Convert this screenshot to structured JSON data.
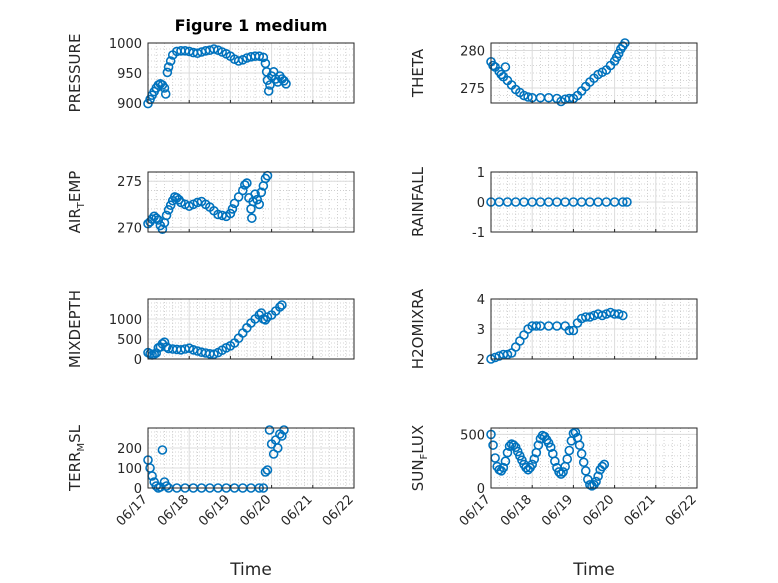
{
  "figure": {
    "title": "Figure 1 medium",
    "xlabel": "Time",
    "x_tick_labels": [
      "06/17",
      "06/18",
      "06/19",
      "06/20",
      "06/21",
      "06/22"
    ],
    "marker_color": "#0072BD"
  },
  "chart_data": [
    {
      "type": "scatter",
      "ylabel": {
        "main": "PRESSURE",
        "sub": ""
      },
      "ylim": [
        900,
        1000
      ],
      "yticks": [
        900,
        950,
        1000
      ],
      "xlim": [
        0,
        5
      ],
      "points": [
        [
          0.0,
          899
        ],
        [
          0.05,
          906
        ],
        [
          0.1,
          913
        ],
        [
          0.15,
          919
        ],
        [
          0.2,
          925
        ],
        [
          0.25,
          930
        ],
        [
          0.3,
          932
        ],
        [
          0.35,
          930
        ],
        [
          0.4,
          925
        ],
        [
          0.43,
          915
        ],
        [
          0.47,
          951
        ],
        [
          0.5,
          960
        ],
        [
          0.55,
          970
        ],
        [
          0.6,
          980
        ],
        [
          0.7,
          986
        ],
        [
          0.8,
          987
        ],
        [
          0.9,
          987
        ],
        [
          1.0,
          986
        ],
        [
          1.1,
          984
        ],
        [
          1.2,
          983
        ],
        [
          1.3,
          985
        ],
        [
          1.4,
          987
        ],
        [
          1.5,
          988
        ],
        [
          1.6,
          990
        ],
        [
          1.7,
          988
        ],
        [
          1.8,
          985
        ],
        [
          1.9,
          982
        ],
        [
          2.0,
          978
        ],
        [
          2.1,
          973
        ],
        [
          2.2,
          970
        ],
        [
          2.3,
          972
        ],
        [
          2.4,
          975
        ],
        [
          2.5,
          977
        ],
        [
          2.6,
          978
        ],
        [
          2.7,
          978
        ],
        [
          2.8,
          976
        ],
        [
          2.85,
          966
        ],
        [
          2.88,
          952
        ],
        [
          2.9,
          938
        ],
        [
          2.93,
          920
        ],
        [
          2.96,
          930
        ],
        [
          3.0,
          945
        ],
        [
          3.05,
          952
        ],
        [
          3.1,
          940
        ],
        [
          3.15,
          935
        ],
        [
          3.2,
          945
        ],
        [
          3.25,
          940
        ],
        [
          3.3,
          937
        ],
        [
          3.35,
          932
        ]
      ]
    },
    {
      "type": "scatter",
      "ylabel": {
        "main": "THETA",
        "sub": ""
      },
      "ylim": [
        273,
        281
      ],
      "yticks": [
        275,
        280
      ],
      "xlim": [
        0,
        5
      ],
      "points": [
        [
          0.0,
          278.5
        ],
        [
          0.05,
          278.0
        ],
        [
          0.1,
          277.8
        ],
        [
          0.2,
          277.2
        ],
        [
          0.25,
          276.8
        ],
        [
          0.3,
          276.5
        ],
        [
          0.35,
          277.8
        ],
        [
          0.4,
          276.0
        ],
        [
          0.5,
          275.4
        ],
        [
          0.6,
          274.8
        ],
        [
          0.7,
          274.4
        ],
        [
          0.8,
          274.0
        ],
        [
          0.9,
          273.8
        ],
        [
          1.0,
          273.7
        ],
        [
          1.2,
          273.7
        ],
        [
          1.4,
          273.7
        ],
        [
          1.6,
          273.6
        ],
        [
          1.7,
          273.2
        ],
        [
          1.8,
          273.5
        ],
        [
          1.9,
          273.6
        ],
        [
          2.0,
          273.6
        ],
        [
          2.1,
          274.0
        ],
        [
          2.2,
          274.6
        ],
        [
          2.3,
          275.2
        ],
        [
          2.4,
          275.8
        ],
        [
          2.5,
          276.3
        ],
        [
          2.6,
          276.8
        ],
        [
          2.7,
          277.1
        ],
        [
          2.8,
          277.4
        ],
        [
          2.9,
          278.0
        ],
        [
          3.0,
          278.6
        ],
        [
          3.05,
          279.1
        ],
        [
          3.1,
          279.6
        ],
        [
          3.15,
          280.2
        ],
        [
          3.2,
          280.6
        ],
        [
          3.25,
          281.0
        ]
      ]
    },
    {
      "type": "scatter",
      "ylabel": {
        "main": "AIR",
        "sub": "T",
        "post": "EMP"
      },
      "ylim": [
        269.5,
        276
      ],
      "yticks": [
        270,
        275
      ],
      "xlim": [
        0,
        5
      ],
      "points": [
        [
          0.0,
          270.4
        ],
        [
          0.05,
          270.6
        ],
        [
          0.1,
          270.9
        ],
        [
          0.15,
          271.2
        ],
        [
          0.2,
          271.0
        ],
        [
          0.25,
          270.8
        ],
        [
          0.3,
          270.2
        ],
        [
          0.35,
          269.8
        ],
        [
          0.4,
          270.5
        ],
        [
          0.45,
          271.3
        ],
        [
          0.5,
          271.9
        ],
        [
          0.55,
          272.4
        ],
        [
          0.6,
          272.9
        ],
        [
          0.65,
          273.3
        ],
        [
          0.7,
          273.2
        ],
        [
          0.75,
          273.0
        ],
        [
          0.8,
          272.7
        ],
        [
          0.9,
          272.5
        ],
        [
          1.0,
          272.3
        ],
        [
          1.1,
          272.5
        ],
        [
          1.2,
          272.7
        ],
        [
          1.3,
          272.8
        ],
        [
          1.4,
          272.5
        ],
        [
          1.5,
          272.2
        ],
        [
          1.6,
          271.8
        ],
        [
          1.7,
          271.4
        ],
        [
          1.8,
          271.3
        ],
        [
          1.9,
          271.2
        ],
        [
          2.0,
          271.5
        ],
        [
          2.05,
          272.0
        ],
        [
          2.1,
          272.6
        ],
        [
          2.2,
          273.3
        ],
        [
          2.3,
          274.0
        ],
        [
          2.35,
          274.6
        ],
        [
          2.4,
          274.8
        ],
        [
          2.45,
          273.2
        ],
        [
          2.5,
          272.0
        ],
        [
          2.52,
          271.0
        ],
        [
          2.55,
          272.8
        ],
        [
          2.6,
          273.6
        ],
        [
          2.65,
          273.0
        ],
        [
          2.7,
          272.5
        ],
        [
          2.75,
          273.8
        ],
        [
          2.8,
          274.5
        ],
        [
          2.85,
          275.3
        ],
        [
          2.9,
          275.6
        ]
      ]
    },
    {
      "type": "scatter",
      "ylabel": {
        "main": "RAINFALL",
        "sub": ""
      },
      "ylim": [
        -1,
        1
      ],
      "yticks": [
        -1,
        0,
        1
      ],
      "xlim": [
        0,
        5
      ],
      "points": [
        [
          0.0,
          0
        ],
        [
          0.2,
          0
        ],
        [
          0.4,
          0
        ],
        [
          0.6,
          0
        ],
        [
          0.8,
          0
        ],
        [
          1.0,
          0
        ],
        [
          1.2,
          0
        ],
        [
          1.4,
          0
        ],
        [
          1.6,
          0
        ],
        [
          1.8,
          0
        ],
        [
          2.0,
          0
        ],
        [
          2.2,
          0
        ],
        [
          2.4,
          0
        ],
        [
          2.6,
          0
        ],
        [
          2.8,
          0
        ],
        [
          3.0,
          0
        ],
        [
          3.2,
          0
        ],
        [
          3.3,
          0
        ]
      ]
    },
    {
      "type": "scatter",
      "ylabel": {
        "main": "MIXDEPTH",
        "sub": ""
      },
      "ylim": [
        0,
        1500
      ],
      "yticks": [
        0,
        500,
        1000
      ],
      "xlim": [
        0,
        5
      ],
      "points": [
        [
          0.0,
          160
        ],
        [
          0.05,
          130
        ],
        [
          0.1,
          100
        ],
        [
          0.15,
          120
        ],
        [
          0.2,
          150
        ],
        [
          0.25,
          280
        ],
        [
          0.3,
          300
        ],
        [
          0.35,
          380
        ],
        [
          0.4,
          420
        ],
        [
          0.45,
          300
        ],
        [
          0.5,
          260
        ],
        [
          0.6,
          250
        ],
        [
          0.7,
          240
        ],
        [
          0.8,
          230
        ],
        [
          0.9,
          250
        ],
        [
          1.0,
          270
        ],
        [
          1.1,
          230
        ],
        [
          1.2,
          200
        ],
        [
          1.3,
          170
        ],
        [
          1.4,
          150
        ],
        [
          1.5,
          130
        ],
        [
          1.6,
          120
        ],
        [
          1.7,
          160
        ],
        [
          1.8,
          220
        ],
        [
          1.9,
          280
        ],
        [
          2.0,
          330
        ],
        [
          2.1,
          400
        ],
        [
          2.2,
          520
        ],
        [
          2.3,
          650
        ],
        [
          2.4,
          780
        ],
        [
          2.5,
          900
        ],
        [
          2.6,
          1000
        ],
        [
          2.7,
          1100
        ],
        [
          2.75,
          1150
        ],
        [
          2.8,
          1000
        ],
        [
          2.85,
          980
        ],
        [
          2.9,
          1050
        ],
        [
          3.0,
          1100
        ],
        [
          3.1,
          1200
        ],
        [
          3.2,
          1300
        ],
        [
          3.25,
          1350
        ]
      ]
    },
    {
      "type": "scatter",
      "ylabel": {
        "main": "H2OMIXRA",
        "sub": ""
      },
      "ylim": [
        2,
        4
      ],
      "yticks": [
        2,
        3,
        4
      ],
      "xlim": [
        0,
        5
      ],
      "points": [
        [
          0.0,
          2.0
        ],
        [
          0.1,
          2.05
        ],
        [
          0.2,
          2.1
        ],
        [
          0.3,
          2.15
        ],
        [
          0.4,
          2.15
        ],
        [
          0.5,
          2.2
        ],
        [
          0.6,
          2.4
        ],
        [
          0.7,
          2.6
        ],
        [
          0.8,
          2.8
        ],
        [
          0.9,
          3.0
        ],
        [
          1.0,
          3.1
        ],
        [
          1.1,
          3.1
        ],
        [
          1.2,
          3.1
        ],
        [
          1.4,
          3.1
        ],
        [
          1.6,
          3.1
        ],
        [
          1.8,
          3.1
        ],
        [
          1.9,
          2.95
        ],
        [
          2.0,
          2.95
        ],
        [
          2.1,
          3.2
        ],
        [
          2.2,
          3.35
        ],
        [
          2.3,
          3.4
        ],
        [
          2.4,
          3.4
        ],
        [
          2.5,
          3.45
        ],
        [
          2.6,
          3.5
        ],
        [
          2.7,
          3.45
        ],
        [
          2.8,
          3.5
        ],
        [
          2.9,
          3.55
        ],
        [
          3.0,
          3.5
        ],
        [
          3.1,
          3.5
        ],
        [
          3.2,
          3.45
        ]
      ]
    },
    {
      "type": "scatter",
      "ylabel": {
        "main": "TERR",
        "sub": "M",
        "post": "SL"
      },
      "ylim": [
        0,
        300
      ],
      "yticks": [
        0,
        100,
        200
      ],
      "xlim": [
        0,
        5
      ],
      "points": [
        [
          0.0,
          140
        ],
        [
          0.05,
          100
        ],
        [
          0.1,
          60
        ],
        [
          0.15,
          30
        ],
        [
          0.2,
          10
        ],
        [
          0.25,
          0
        ],
        [
          0.3,
          5
        ],
        [
          0.35,
          190
        ],
        [
          0.4,
          30
        ],
        [
          0.45,
          10
        ],
        [
          0.5,
          0
        ],
        [
          0.7,
          0
        ],
        [
          0.9,
          0
        ],
        [
          1.1,
          0
        ],
        [
          1.3,
          0
        ],
        [
          1.5,
          0
        ],
        [
          1.7,
          0
        ],
        [
          1.9,
          0
        ],
        [
          2.1,
          0
        ],
        [
          2.3,
          0
        ],
        [
          2.5,
          0
        ],
        [
          2.7,
          0
        ],
        [
          2.8,
          0
        ],
        [
          2.85,
          80
        ],
        [
          2.9,
          90
        ],
        [
          2.95,
          290
        ],
        [
          3.0,
          220
        ],
        [
          3.05,
          170
        ],
        [
          3.1,
          240
        ],
        [
          3.15,
          200
        ],
        [
          3.2,
          270
        ],
        [
          3.25,
          260
        ],
        [
          3.3,
          290
        ]
      ]
    },
    {
      "type": "scatter",
      "ylabel": {
        "main": "SUN",
        "sub": "F",
        "post": "LUX"
      },
      "ylim": [
        0,
        560
      ],
      "yticks": [
        0,
        500
      ],
      "xlim": [
        0,
        5
      ],
      "points": [
        [
          0.0,
          500
        ],
        [
          0.05,
          400
        ],
        [
          0.1,
          280
        ],
        [
          0.15,
          200
        ],
        [
          0.2,
          170
        ],
        [
          0.25,
          160
        ],
        [
          0.3,
          190
        ],
        [
          0.35,
          250
        ],
        [
          0.4,
          330
        ],
        [
          0.45,
          390
        ],
        [
          0.5,
          410
        ],
        [
          0.55,
          400
        ],
        [
          0.6,
          380
        ],
        [
          0.65,
          340
        ],
        [
          0.7,
          300
        ],
        [
          0.75,
          260
        ],
        [
          0.8,
          220
        ],
        [
          0.85,
          190
        ],
        [
          0.9,
          170
        ],
        [
          0.95,
          190
        ],
        [
          1.0,
          220
        ],
        [
          1.05,
          270
        ],
        [
          1.1,
          330
        ],
        [
          1.15,
          400
        ],
        [
          1.2,
          460
        ],
        [
          1.25,
          490
        ],
        [
          1.3,
          480
        ],
        [
          1.35,
          450
        ],
        [
          1.4,
          420
        ],
        [
          1.45,
          380
        ],
        [
          1.5,
          320
        ],
        [
          1.55,
          250
        ],
        [
          1.6,
          190
        ],
        [
          1.65,
          150
        ],
        [
          1.7,
          130
        ],
        [
          1.75,
          150
        ],
        [
          1.8,
          200
        ],
        [
          1.85,
          270
        ],
        [
          1.9,
          350
        ],
        [
          1.95,
          440
        ],
        [
          2.0,
          510
        ],
        [
          2.05,
          520
        ],
        [
          2.1,
          470
        ],
        [
          2.15,
          400
        ],
        [
          2.2,
          320
        ],
        [
          2.25,
          240
        ],
        [
          2.3,
          160
        ],
        [
          2.35,
          80
        ],
        [
          2.4,
          30
        ],
        [
          2.45,
          20
        ],
        [
          2.5,
          30
        ],
        [
          2.55,
          60
        ],
        [
          2.6,
          110
        ],
        [
          2.65,
          170
        ],
        [
          2.7,
          200
        ],
        [
          2.75,
          220
        ]
      ]
    }
  ]
}
